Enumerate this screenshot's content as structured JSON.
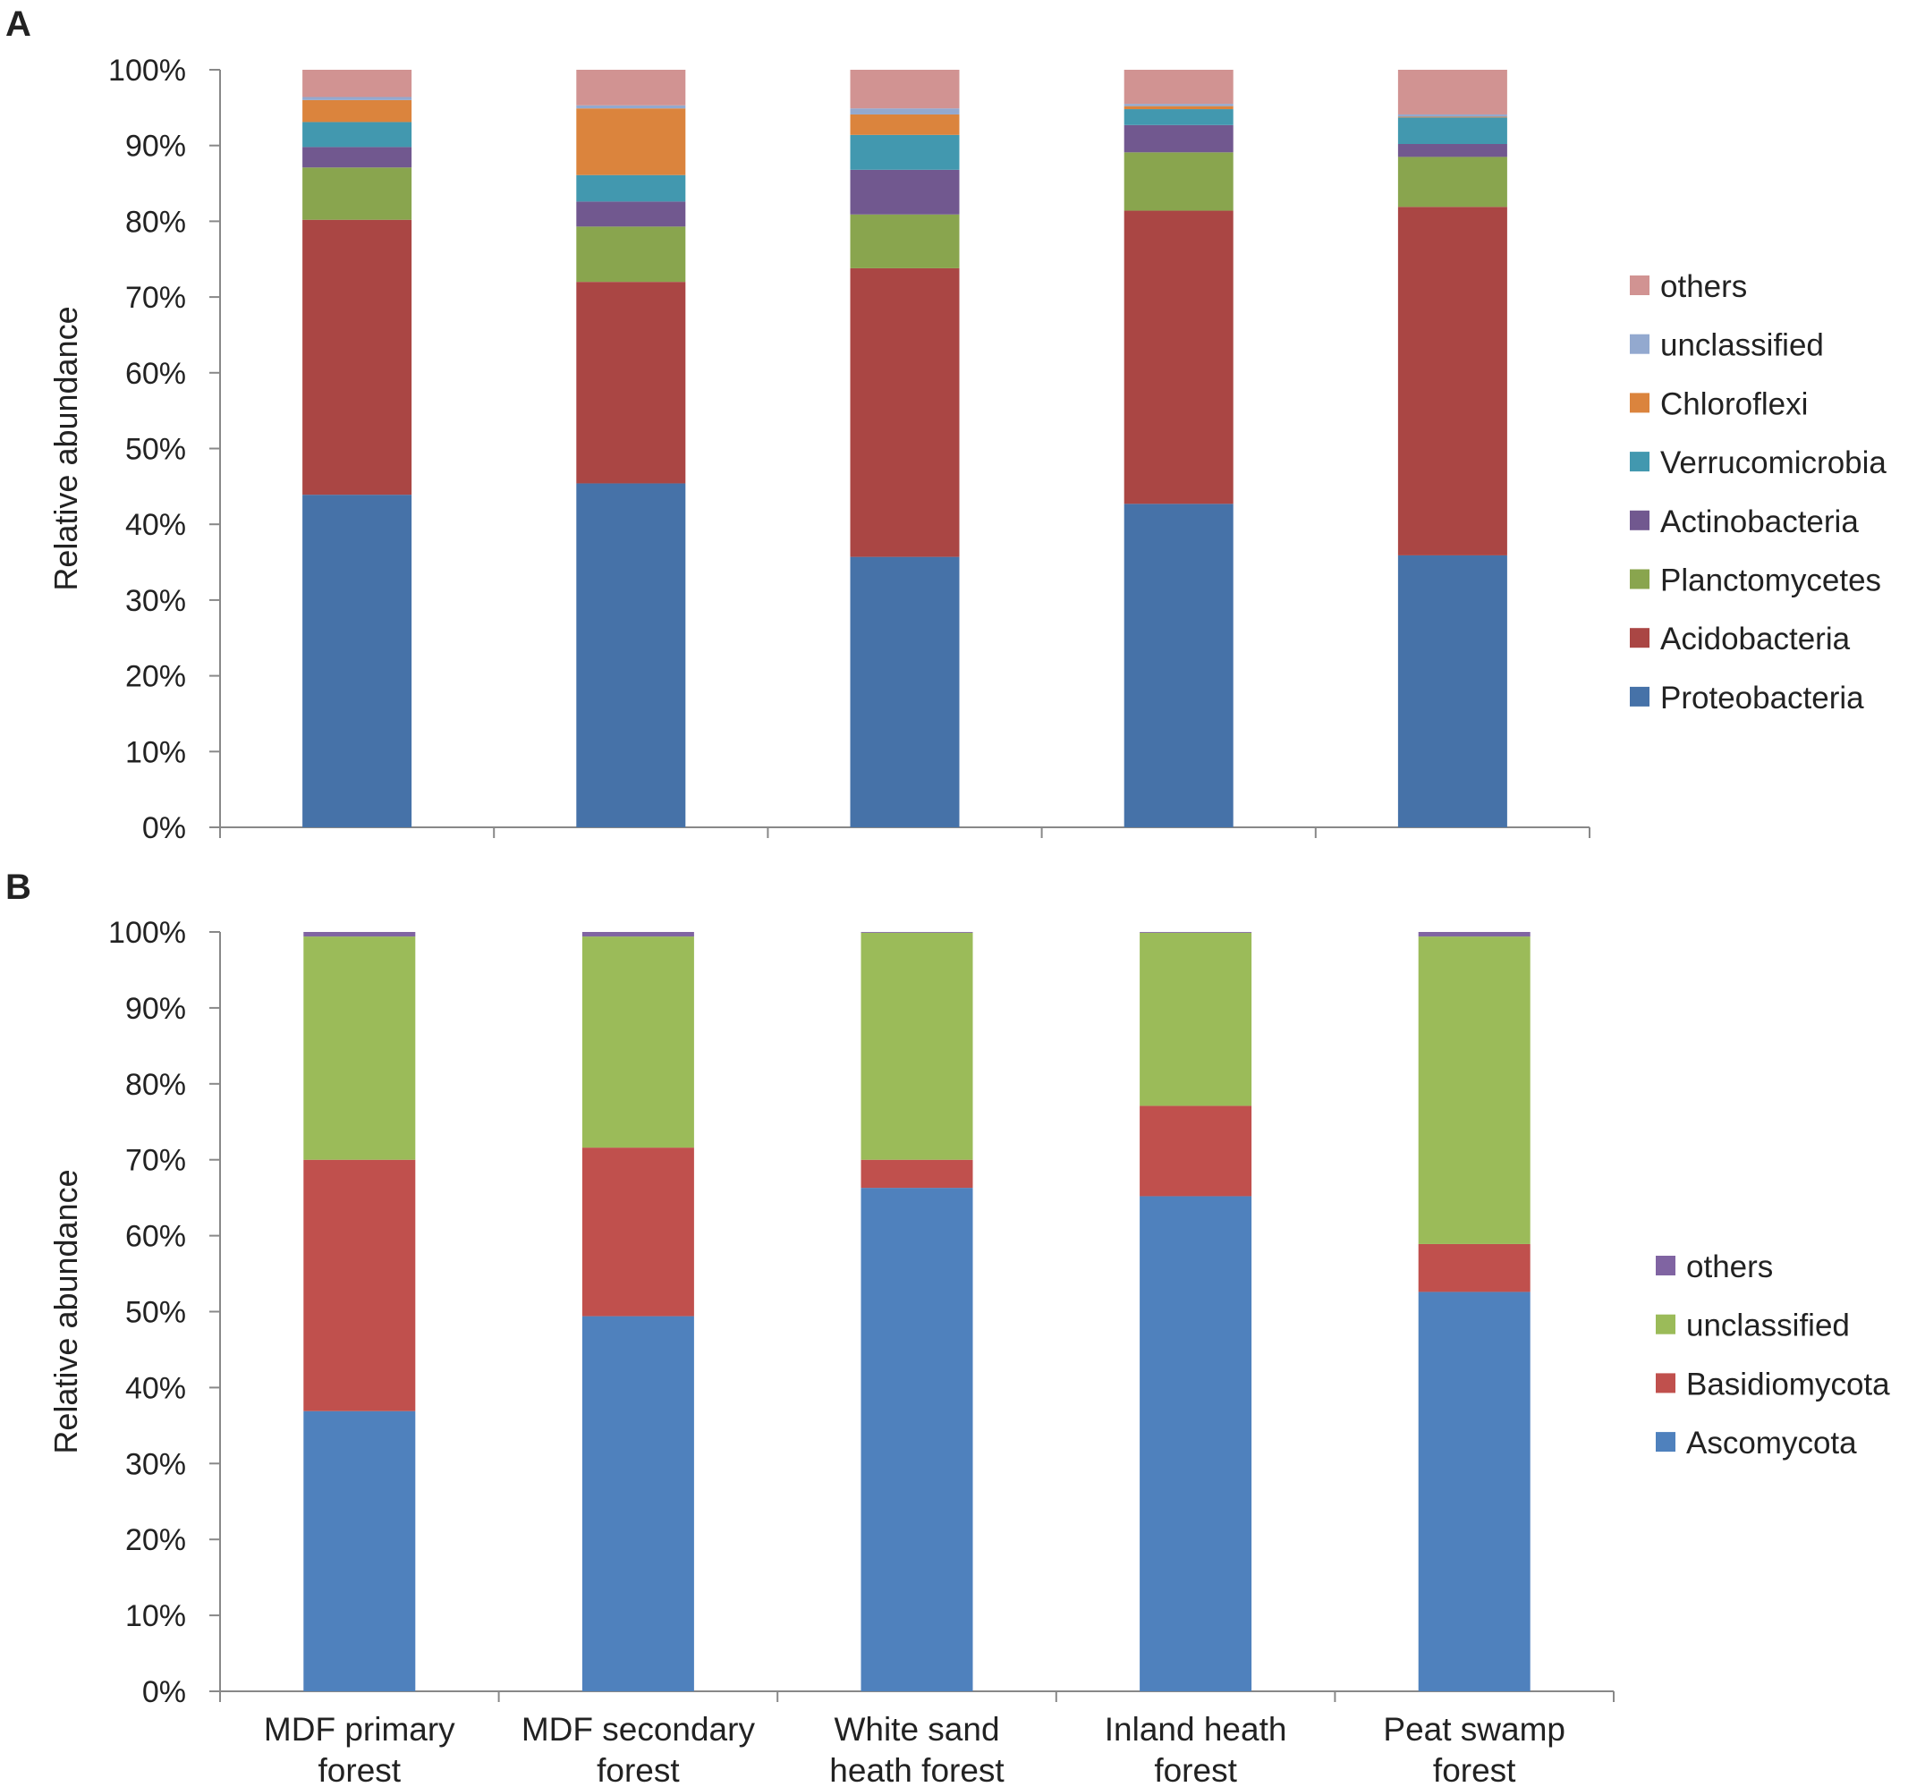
{
  "chart_data": [
    {
      "type": "bar",
      "stacked": true,
      "panel": "A",
      "title": "",
      "xlabel": "",
      "ylabel": "Relative abundance",
      "ylim": [
        0,
        100
      ],
      "yticks": [
        "0%",
        "10%",
        "20%",
        "30%",
        "40%",
        "50%",
        "60%",
        "70%",
        "80%",
        "90%",
        "100%"
      ],
      "legend_position": "right",
      "categories": [
        "MDF primary forest",
        "MDF secondary forest",
        "White sand heath forest",
        "Inland heath forest",
        "Peat swamp forest"
      ],
      "series": [
        {
          "name": "Proteobacteria",
          "color": "#4672a8",
          "values": [
            43.9,
            45.4,
            35.7,
            42.7,
            35.9
          ]
        },
        {
          "name": "Acidobacteria",
          "color": "#aa4644",
          "values": [
            36.3,
            26.6,
            38.1,
            38.7,
            46.0
          ]
        },
        {
          "name": "Planctomycetes",
          "color": "#89a54e",
          "values": [
            6.9,
            7.3,
            7.1,
            7.7,
            6.6
          ]
        },
        {
          "name": "Actinobacteria",
          "color": "#71588f",
          "values": [
            2.7,
            3.3,
            5.9,
            3.6,
            1.7
          ]
        },
        {
          "name": "Verrucomicrobia",
          "color": "#4298af",
          "values": [
            3.3,
            3.5,
            4.6,
            2.1,
            3.5
          ]
        },
        {
          "name": "Chloroflexi",
          "color": "#db843d",
          "values": [
            2.9,
            8.8,
            2.7,
            0.4,
            0.1
          ]
        },
        {
          "name": "unclassified",
          "color": "#93a9cf",
          "values": [
            0.4,
            0.4,
            0.8,
            0.3,
            0.3
          ]
        },
        {
          "name": "others",
          "color": "#d19392",
          "values": [
            3.6,
            4.7,
            5.1,
            4.5,
            5.9
          ]
        }
      ]
    },
    {
      "type": "bar",
      "stacked": true,
      "panel": "B",
      "title": "",
      "xlabel": "",
      "ylabel": "Relative abundance",
      "ylim": [
        0,
        100
      ],
      "yticks": [
        "0%",
        "10%",
        "20%",
        "30%",
        "40%",
        "50%",
        "60%",
        "70%",
        "80%",
        "90%",
        "100%"
      ],
      "legend_position": "right",
      "categories": [
        "MDF primary forest",
        "MDF secondary forest",
        "White sand heath forest",
        "Inland heath forest",
        "Peat swamp forest"
      ],
      "category_lines": [
        [
          "MDF primary",
          "forest"
        ],
        [
          "MDF secondary",
          "forest"
        ],
        [
          "White sand",
          "heath forest"
        ],
        [
          "Inland heath",
          "forest"
        ],
        [
          "Peat swamp",
          "forest"
        ]
      ],
      "series": [
        {
          "name": "Ascomycota",
          "color": "#4f81bd",
          "values": [
            36.9,
            49.4,
            66.3,
            65.2,
            52.6
          ]
        },
        {
          "name": "Basidiomycota",
          "color": "#c0504d",
          "values": [
            33.1,
            22.2,
            3.7,
            11.9,
            6.3
          ]
        },
        {
          "name": "unclassified",
          "color": "#9bbb59",
          "values": [
            29.4,
            27.8,
            29.9,
            22.8,
            40.5
          ]
        },
        {
          "name": "others",
          "color": "#8064a2",
          "values": [
            0.6,
            0.6,
            0.1,
            0.1,
            0.6
          ]
        }
      ]
    }
  ]
}
